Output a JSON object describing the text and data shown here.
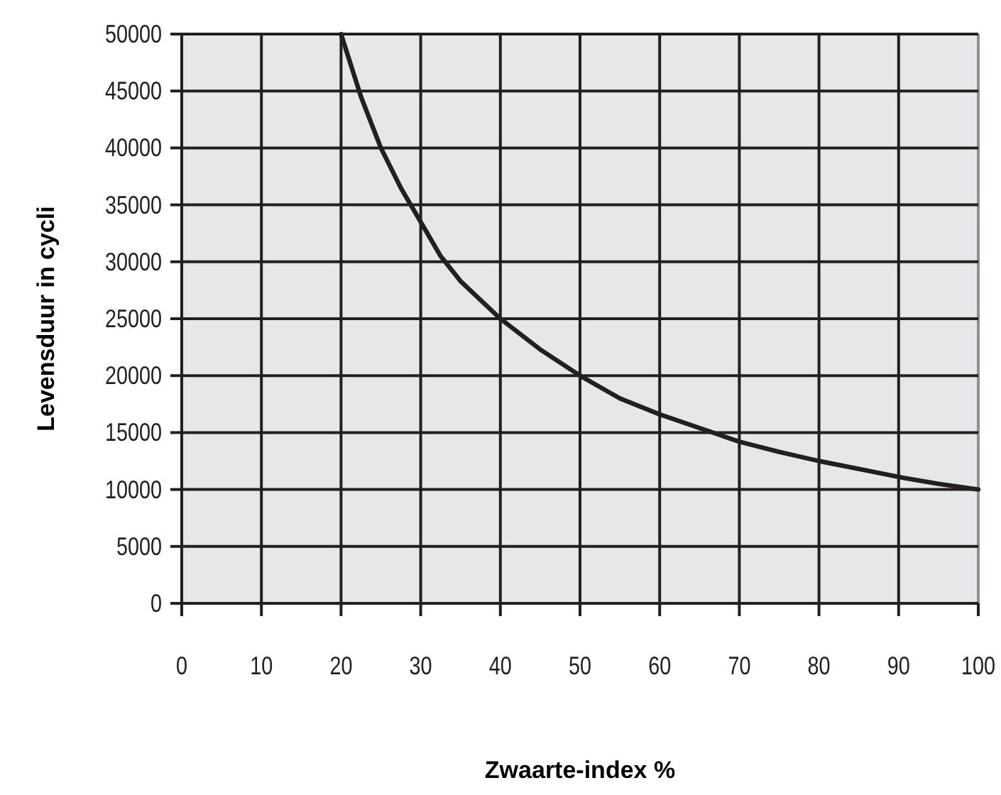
{
  "chart_data": {
    "type": "line",
    "xlabel": "Zwaarte-index %",
    "ylabel": "Levensduur in cycli",
    "x": [
      20,
      22.5,
      25,
      27.5,
      30,
      32.5,
      35,
      40,
      45,
      50,
      55,
      60,
      65,
      70,
      75,
      80,
      85,
      90,
      95,
      100
    ],
    "series": [
      {
        "color": "#231f20",
        "values": [
          50000,
          44500,
          40000,
          36500,
          33500,
          30500,
          28300,
          25000,
          22300,
          20000,
          18000,
          16600,
          15400,
          14200,
          13300,
          12500,
          11800,
          11100,
          10500,
          10000
        ]
      }
    ],
    "xlim": [
      0,
      100
    ],
    "xticks": [
      0,
      10,
      20,
      30,
      40,
      50,
      60,
      70,
      80,
      90,
      100
    ],
    "ylim": [
      0,
      50000
    ],
    "yticks": [
      0,
      5000,
      10000,
      15000,
      20000,
      25000,
      30000,
      35000,
      40000,
      45000,
      50000
    ],
    "grid": true,
    "marker": "none",
    "line_style": "solid"
  }
}
